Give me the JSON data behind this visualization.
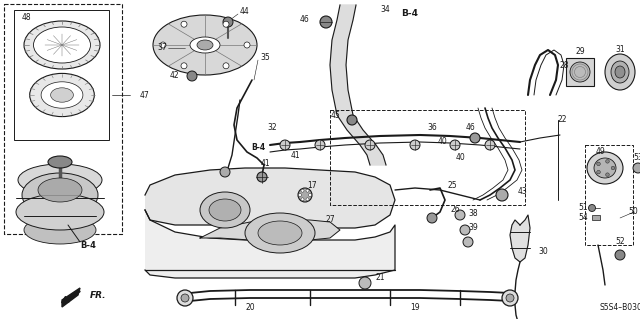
{
  "bg_color": "#ffffff",
  "diagram_code": "S5S4–B0300",
  "dark": "#1a1a1a",
  "gray": "#777777",
  "lgray": "#aaaaaa",
  "figsize": [
    6.4,
    3.19
  ],
  "dpi": 100
}
